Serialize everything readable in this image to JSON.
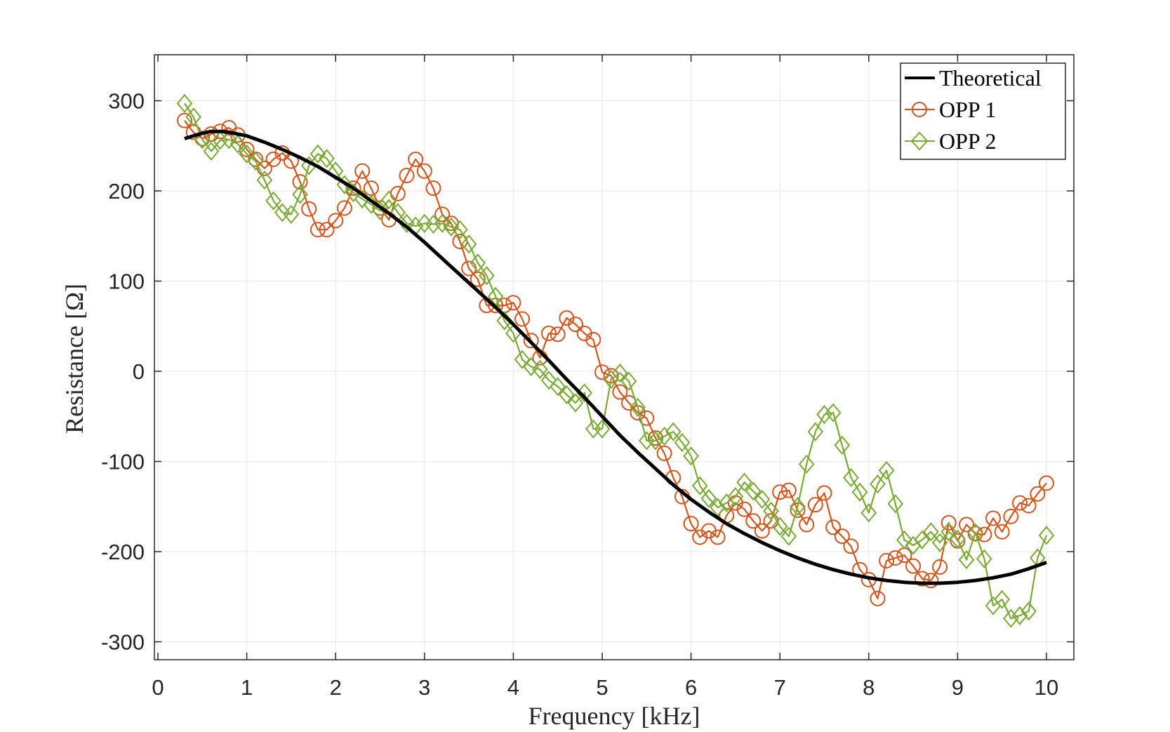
{
  "colors": {
    "theoretical": "#000000",
    "opp1": "#D95319",
    "opp2": "#77AC30",
    "grid": "#e6e6e6",
    "axis": "#262626"
  },
  "chart_data": {
    "type": "line",
    "title": "",
    "xlabel": "Frequency [kHz]",
    "ylabel": "Resistance [Ω]",
    "xlim": [
      0,
      10
    ],
    "ylim": [
      -320,
      350
    ],
    "xticks": [
      0,
      1,
      2,
      3,
      4,
      5,
      6,
      7,
      8,
      9,
      10
    ],
    "yticks": [
      -300,
      -200,
      -100,
      0,
      100,
      200,
      300
    ],
    "grid": true,
    "legend_position": "top-right",
    "series": [
      {
        "name": "Theoretical",
        "marker": "none",
        "x": [
          0.3,
          0.4,
          0.5,
          0.6,
          0.7,
          0.8,
          0.9,
          1.0,
          1.2,
          1.4,
          1.6,
          1.8,
          2.0,
          2.2,
          2.4,
          2.6,
          2.8,
          3.0,
          3.2,
          3.4,
          3.6,
          3.8,
          4.0,
          4.2,
          4.4,
          4.6,
          4.8,
          5.0,
          5.2,
          5.4,
          5.6,
          5.8,
          6.0,
          6.2,
          6.4,
          6.6,
          6.8,
          7.0,
          7.2,
          7.4,
          7.6,
          7.8,
          8.0,
          8.2,
          8.4,
          8.6,
          8.8,
          9.0,
          9.2,
          9.4,
          9.6,
          9.8,
          10.0
        ],
        "y": [
          258,
          261,
          264,
          266,
          266,
          265,
          263,
          261,
          254,
          246,
          237,
          227,
          215,
          203,
          189,
          175,
          160,
          143,
          125,
          107,
          89,
          71,
          52,
          32,
          12,
          -9,
          -29,
          -50,
          -71,
          -90,
          -108,
          -126,
          -142,
          -156,
          -169,
          -180,
          -190,
          -199,
          -207,
          -214,
          -220,
          -225,
          -229,
          -232,
          -234,
          -235,
          -235,
          -234,
          -232,
          -229,
          -225,
          -219,
          -212
        ]
      },
      {
        "name": "OPP 1",
        "marker": "circle",
        "x": [
          0.3,
          0.4,
          0.5,
          0.6,
          0.7,
          0.8,
          0.9,
          1.0,
          1.1,
          1.2,
          1.3,
          1.4,
          1.5,
          1.6,
          1.7,
          1.8,
          1.9,
          2.0,
          2.1,
          2.2,
          2.3,
          2.4,
          2.5,
          2.6,
          2.7,
          2.8,
          2.9,
          3.0,
          3.1,
          3.2,
          3.3,
          3.4,
          3.5,
          3.6,
          3.7,
          3.8,
          3.9,
          4.0,
          4.1,
          4.2,
          4.3,
          4.4,
          4.5,
          4.6,
          4.7,
          4.8,
          4.9,
          5.0,
          5.1,
          5.2,
          5.3,
          5.4,
          5.5,
          5.6,
          5.7,
          5.8,
          5.9,
          6.0,
          6.1,
          6.2,
          6.3,
          6.4,
          6.5,
          6.6,
          6.7,
          6.8,
          6.9,
          7.0,
          7.1,
          7.2,
          7.3,
          7.4,
          7.5,
          7.6,
          7.7,
          7.8,
          7.9,
          8.0,
          8.1,
          8.2,
          8.3,
          8.4,
          8.5,
          8.6,
          8.7,
          8.8,
          8.9,
          9.0,
          9.1,
          9.2,
          9.3,
          9.4,
          9.5,
          9.6,
          9.7,
          9.8,
          9.9,
          10.0
        ],
        "y": [
          278,
          265,
          258,
          263,
          266,
          270,
          262,
          246,
          235,
          225,
          235,
          242,
          233,
          210,
          180,
          157,
          157,
          167,
          181,
          203,
          222,
          203,
          181,
          168,
          197,
          217,
          235,
          222,
          203,
          174,
          164,
          144,
          114,
          102,
          73,
          73,
          73,
          76,
          58,
          34,
          15,
          42,
          41,
          59,
          52,
          42,
          35,
          -1,
          -5,
          -23,
          -35,
          -46,
          -52,
          -74,
          -91,
          -118,
          -139,
          -169,
          -184,
          -177,
          -184,
          -160,
          -146,
          -153,
          -166,
          -177,
          -166,
          -134,
          -132,
          -154,
          -170,
          -148,
          -135,
          -173,
          -183,
          -194,
          -220,
          -231,
          -252,
          -210,
          -207,
          -204,
          -216,
          -230,
          -232,
          -217,
          -168,
          -188,
          -170,
          -180,
          -181,
          -163,
          -178,
          -161,
          -146,
          -149,
          -136,
          -124
        ]
      },
      {
        "name": "OPP 2",
        "marker": "diamond",
        "x": [
          0.3,
          0.4,
          0.5,
          0.6,
          0.7,
          0.8,
          0.9,
          1.0,
          1.1,
          1.2,
          1.3,
          1.4,
          1.5,
          1.6,
          1.7,
          1.8,
          1.9,
          2.0,
          2.1,
          2.2,
          2.3,
          2.4,
          2.5,
          2.6,
          2.7,
          2.8,
          2.9,
          3.0,
          3.1,
          3.2,
          3.3,
          3.4,
          3.5,
          3.6,
          3.7,
          3.8,
          3.9,
          4.0,
          4.1,
          4.2,
          4.3,
          4.4,
          4.5,
          4.6,
          4.7,
          4.8,
          4.9,
          5.0,
          5.1,
          5.2,
          5.3,
          5.4,
          5.5,
          5.6,
          5.7,
          5.8,
          5.9,
          6.0,
          6.1,
          6.2,
          6.3,
          6.4,
          6.5,
          6.6,
          6.7,
          6.8,
          6.9,
          7.0,
          7.1,
          7.2,
          7.3,
          7.4,
          7.5,
          7.6,
          7.7,
          7.8,
          7.9,
          8.0,
          8.1,
          8.2,
          8.3,
          8.4,
          8.5,
          8.6,
          8.7,
          8.8,
          8.9,
          9.0,
          9.1,
          9.2,
          9.3,
          9.4,
          9.5,
          9.6,
          9.7,
          9.8,
          9.9,
          10.0
        ],
        "y": [
          297,
          282,
          257,
          244,
          256,
          257,
          252,
          241,
          233,
          212,
          189,
          176,
          174,
          196,
          228,
          241,
          236,
          222,
          207,
          198,
          191,
          185,
          178,
          190,
          176,
          164,
          161,
          164,
          163,
          164,
          160,
          157,
          141,
          120,
          106,
          83,
          56,
          42,
          13,
          5,
          2,
          -10,
          -17,
          -26,
          -35,
          -24,
          -64,
          -64,
          -9,
          -2,
          -11,
          -40,
          -77,
          -77,
          -72,
          -67,
          -79,
          -94,
          -127,
          -141,
          -151,
          -146,
          -139,
          -123,
          -133,
          -142,
          -155,
          -172,
          -183,
          -150,
          -103,
          -67,
          -48,
          -46,
          -82,
          -118,
          -134,
          -157,
          -125,
          -110,
          -147,
          -187,
          -193,
          -187,
          -178,
          -190,
          -178,
          -186,
          -209,
          -179,
          -208,
          -260,
          -253,
          -274,
          -271,
          -266,
          -207,
          -182
        ]
      }
    ]
  }
}
